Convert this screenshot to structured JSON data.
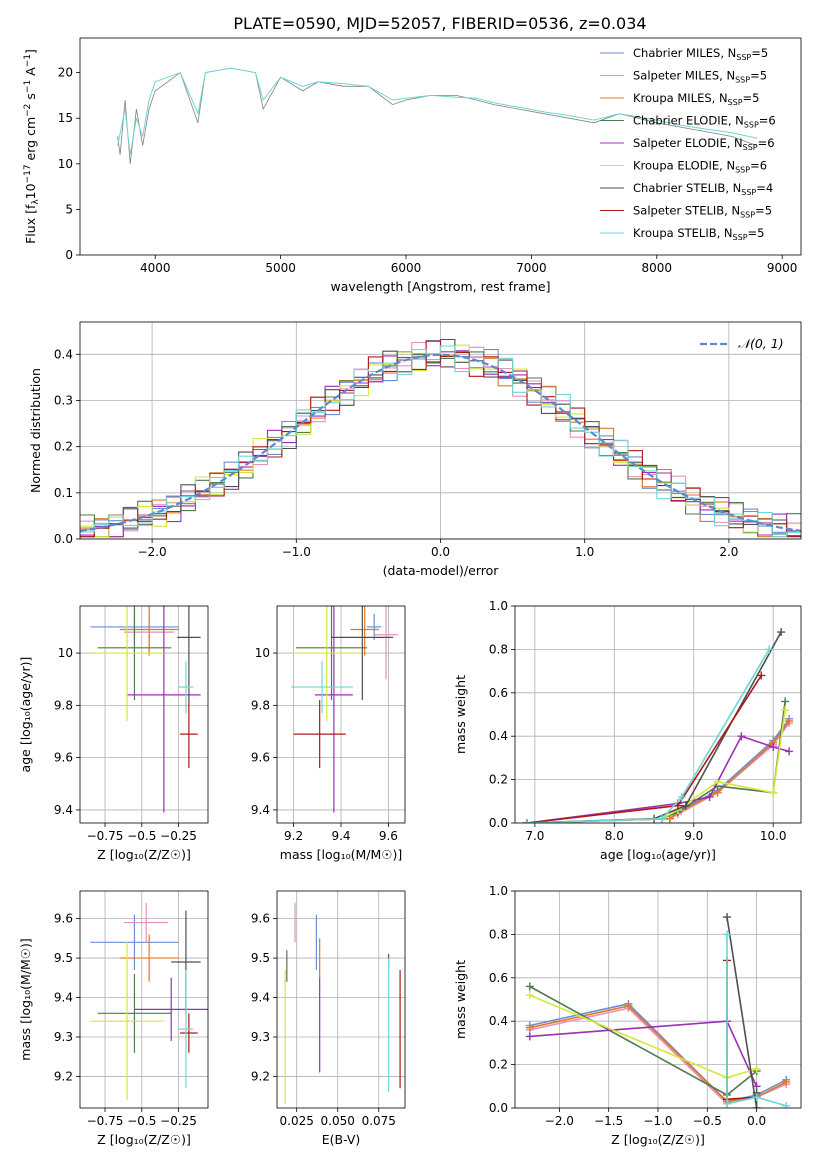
{
  "figure": {
    "title": "PLATE=0590, MJD=52057, FIBERID=0536, z=0.034",
    "colors": {
      "Chabrier MILES": "#6b8fd6",
      "Salpeter MILES": "#e88fc4",
      "Kroupa MILES": "#e07a22",
      "Chabrier ELODIE": "#4f7a4f",
      "Salpeter ELODIE": "#9b2fb5",
      "Kroupa ELODIE": "#d4e83a",
      "Chabrier STELIB": "#505050",
      "Salpeter STELIB": "#b01818",
      "Kroupa STELIB": "#6fd6d6",
      "normal": "#5a8ad6"
    }
  },
  "chart_data": [
    {
      "id": "spectrum",
      "type": "line",
      "xlabel": "wavelength [Angstrom, rest frame]",
      "ylabel": "Flux [f",
      "ylabel_parts": [
        "Flux [f",
        "λ",
        "10",
        "−17",
        " erg cm",
        "−2",
        " s",
        "−1",
        " A",
        "−1",
        "]"
      ],
      "xlim": [
        3400,
        9150
      ],
      "ylim": [
        0,
        23.8
      ],
      "xticks": [
        4000,
        5000,
        6000,
        7000,
        8000,
        9000
      ],
      "yticks": [
        0,
        5,
        10,
        15,
        20
      ],
      "legend_position": "upper-right",
      "legend": [
        {
          "base": "Chabrier MILES, N",
          "sub": "SSP",
          "tail": "=5",
          "color": "#6b8fd6"
        },
        {
          "base": "Salpeter MILES, N",
          "sub": "SSP",
          "tail": "=5",
          "color": "#e88fc4"
        },
        {
          "base": "Kroupa MILES, N",
          "sub": "SSP",
          "tail": "=5",
          "color": "#e07a22"
        },
        {
          "base": "Chabrier ELODIE, N",
          "sub": "SSP",
          "tail": "=6",
          "color": "#4f7a4f"
        },
        {
          "base": "Salpeter ELODIE, N",
          "sub": "SSP",
          "tail": "=6",
          "color": "#9b2fb5"
        },
        {
          "base": "Kroupa ELODIE, N",
          "sub": "SSP",
          "tail": "=6",
          "color": "#d4e83a"
        },
        {
          "base": "Chabrier STELIB, N",
          "sub": "SSP",
          "tail": "=4",
          "color": "#505050"
        },
        {
          "base": "Salpeter STELIB, N",
          "sub": "SSP",
          "tail": "=5",
          "color": "#b01818"
        },
        {
          "base": "Kroupa STELIB, N",
          "sub": "SSP",
          "tail": "=5",
          "color": "#6fd6d6"
        }
      ],
      "data_trace": {
        "color": "#808080",
        "points": [
          [
            3700,
            13
          ],
          [
            3720,
            11
          ],
          [
            3760,
            17
          ],
          [
            3800,
            10
          ],
          [
            3850,
            16
          ],
          [
            3900,
            12
          ],
          [
            3950,
            16
          ],
          [
            4000,
            18
          ],
          [
            4100,
            19
          ],
          [
            4200,
            20
          ],
          [
            4340,
            14.5
          ],
          [
            4400,
            20
          ],
          [
            4600,
            20.5
          ],
          [
            4800,
            20
          ],
          [
            4861,
            16
          ],
          [
            5000,
            19.5
          ],
          [
            5175,
            18
          ],
          [
            5300,
            19
          ],
          [
            5500,
            18.5
          ],
          [
            5700,
            18.5
          ],
          [
            5893,
            16.5
          ],
          [
            6000,
            17
          ],
          [
            6200,
            17.5
          ],
          [
            6400,
            17.5
          ],
          [
            6563,
            17
          ],
          [
            6700,
            16.5
          ],
          [
            6900,
            16
          ],
          [
            7100,
            15.5
          ],
          [
            7300,
            15
          ],
          [
            7500,
            14.5
          ],
          [
            7700,
            15.5
          ],
          [
            8000,
            14.5
          ],
          [
            8200,
            14
          ],
          [
            8400,
            13.5
          ],
          [
            8600,
            13
          ],
          [
            8800,
            12
          ]
        ]
      },
      "model_trace": {
        "color": "#6fd6d6",
        "points": [
          [
            3700,
            12
          ],
          [
            3760,
            16
          ],
          [
            3800,
            11
          ],
          [
            3850,
            15
          ],
          [
            3900,
            13
          ],
          [
            3950,
            17
          ],
          [
            4000,
            19
          ],
          [
            4100,
            19.5
          ],
          [
            4200,
            20
          ],
          [
            4340,
            15.5
          ],
          [
            4400,
            20
          ],
          [
            4600,
            20.5
          ],
          [
            4800,
            20
          ],
          [
            4861,
            17
          ],
          [
            5000,
            19.5
          ],
          [
            5175,
            18.5
          ],
          [
            5300,
            19
          ],
          [
            5500,
            18.8
          ],
          [
            5700,
            18.5
          ],
          [
            5893,
            17
          ],
          [
            6000,
            17.2
          ],
          [
            6200,
            17.5
          ],
          [
            6400,
            17.3
          ],
          [
            6563,
            17.2
          ],
          [
            6700,
            16.7
          ],
          [
            6900,
            16.2
          ],
          [
            7100,
            15.7
          ],
          [
            7300,
            15.3
          ],
          [
            7500,
            14.8
          ],
          [
            7700,
            15.5
          ],
          [
            8000,
            14.8
          ],
          [
            8200,
            14.2
          ],
          [
            8400,
            13.8
          ],
          [
            8600,
            13.4
          ],
          [
            8800,
            12.8
          ]
        ]
      }
    },
    {
      "id": "residuals",
      "type": "step",
      "xlabel": "(data-model)/error",
      "ylabel": "Normed distribution",
      "xlim": [
        -2.5,
        2.5
      ],
      "ylim": [
        0,
        0.47
      ],
      "xticks": [
        -2,
        -1,
        0,
        1,
        2
      ],
      "yticks": [
        0.0,
        0.1,
        0.2,
        0.3,
        0.4
      ],
      "grid": true,
      "legend_position": "upper-right",
      "legend": [
        {
          "label": "𝒩(0, 1)",
          "color": "#5a8ad6"
        }
      ],
      "normal": {
        "mean": 0,
        "sigma": 1
      }
    },
    {
      "id": "age-vs-z",
      "type": "scatter",
      "xlabel": "Z [log₁₀(Z/Z☉)]",
      "ylabel": "age  [log₁₀(age/yr)]",
      "xlim": [
        -0.92,
        -0.05
      ],
      "ylim": [
        9.35,
        10.18
      ],
      "xticks": [
        -0.75,
        -0.5,
        -0.25
      ],
      "yticks": [
        9.4,
        9.6,
        9.8,
        10.0
      ],
      "grid": true,
      "points": [
        {
          "x": -0.55,
          "y": 10.1,
          "xerr": 0.3,
          "yerr": 0.05,
          "color": "#6b8fd6"
        },
        {
          "x": -0.45,
          "y": 10.08,
          "xerr": 0.17,
          "yerr": 0.07,
          "color": "#e88fc4"
        },
        {
          "x": -0.45,
          "y": 10.09,
          "xerr": 0.2,
          "yerr": 0.1,
          "color": "#e07a22"
        },
        {
          "x": -0.55,
          "y": 10.02,
          "xerr": 0.25,
          "yerr": 0.2,
          "color": "#4f7a4f"
        },
        {
          "x": -0.35,
          "y": 9.84,
          "xerr": 0.25,
          "yerr": 0.45,
          "color": "#9b2fb5"
        },
        {
          "x": -0.6,
          "y": 10.0,
          "xerr": 0.25,
          "yerr": 0.26,
          "color": "#d4e83a"
        },
        {
          "x": -0.18,
          "y": 10.06,
          "xerr": 0.08,
          "yerr": 0.24,
          "color": "#505050"
        },
        {
          "x": -0.18,
          "y": 9.69,
          "xerr": 0.06,
          "yerr": 0.13,
          "color": "#b01818"
        },
        {
          "x": -0.2,
          "y": 9.87,
          "xerr": 0.05,
          "yerr": 0.1,
          "color": "#6fd6d6"
        }
      ]
    },
    {
      "id": "age-vs-mass",
      "type": "scatter",
      "xlabel": "mass [log₁₀(M/M☉)]",
      "ylabel": "",
      "xlim": [
        9.13,
        9.67
      ],
      "ylim": [
        9.35,
        10.18
      ],
      "xticks": [
        9.2,
        9.4,
        9.6
      ],
      "yticks": [
        9.4,
        9.6,
        9.8,
        10.0
      ],
      "grid": true,
      "points": [
        {
          "x": 9.54,
          "y": 10.1,
          "xerr": 0.03,
          "yerr": 0.05,
          "color": "#6b8fd6"
        },
        {
          "x": 9.59,
          "y": 10.07,
          "xerr": 0.05,
          "yerr": 0.17,
          "color": "#e88fc4"
        },
        {
          "x": 9.5,
          "y": 10.09,
          "xerr": 0.06,
          "yerr": 0.1,
          "color": "#e07a22"
        },
        {
          "x": 9.36,
          "y": 10.02,
          "xerr": 0.15,
          "yerr": 0.2,
          "color": "#4f7a4f"
        },
        {
          "x": 9.37,
          "y": 9.84,
          "xerr": 0.08,
          "yerr": 0.45,
          "color": "#9b2fb5"
        },
        {
          "x": 9.34,
          "y": 10.0,
          "xerr": 0.15,
          "yerr": 0.26,
          "color": "#d4e83a"
        },
        {
          "x": 9.49,
          "y": 10.06,
          "xerr": 0.13,
          "yerr": 0.24,
          "color": "#505050"
        },
        {
          "x": 9.31,
          "y": 9.69,
          "xerr": 0.11,
          "yerr": 0.13,
          "color": "#b01818"
        },
        {
          "x": 9.32,
          "y": 9.87,
          "xerr": 0.13,
          "yerr": 0.1,
          "color": "#6fd6d6"
        }
      ]
    },
    {
      "id": "weight-vs-age",
      "type": "line",
      "xlabel": "age  [log₁₀(age/yr)]",
      "ylabel": "mass weight",
      "xlim": [
        6.75,
        10.35
      ],
      "ylim": [
        0,
        1.0
      ],
      "xticks": [
        7,
        8,
        9,
        10
      ],
      "yticks": [
        0.0,
        0.2,
        0.4,
        0.6,
        0.8,
        1.0
      ],
      "grid": true,
      "series": [
        {
          "color": "#6b8fd6",
          "x": [
            6.9,
            8.7,
            8.8,
            9.3,
            10.0,
            10.2
          ],
          "y": [
            0.0,
            0.02,
            0.05,
            0.15,
            0.38,
            0.48
          ]
        },
        {
          "color": "#e88fc4",
          "x": [
            6.9,
            8.7,
            8.8,
            9.3,
            10.0,
            10.2
          ],
          "y": [
            0.0,
            0.02,
            0.04,
            0.14,
            0.36,
            0.46
          ]
        },
        {
          "color": "#e07a22",
          "x": [
            6.9,
            8.7,
            8.8,
            9.3,
            10.0,
            10.2
          ],
          "y": [
            0.0,
            0.02,
            0.05,
            0.14,
            0.37,
            0.47
          ]
        },
        {
          "color": "#4f7a4f",
          "x": [
            6.9,
            8.6,
            8.8,
            9.3,
            10.0,
            10.15
          ],
          "y": [
            0.0,
            0.02,
            0.05,
            0.17,
            0.14,
            0.56
          ]
        },
        {
          "color": "#9b2fb5",
          "x": [
            6.9,
            8.8,
            9.2,
            9.6,
            10.0,
            10.2
          ],
          "y": [
            0.0,
            0.09,
            0.12,
            0.4,
            0.35,
            0.33
          ]
        },
        {
          "color": "#d4e83a",
          "x": [
            6.9,
            8.6,
            8.8,
            9.3,
            10.0,
            10.15
          ],
          "y": [
            0.0,
            0.02,
            0.06,
            0.19,
            0.14,
            0.52
          ]
        },
        {
          "color": "#505050",
          "x": [
            6.9,
            8.5,
            8.9,
            10.1
          ],
          "y": [
            0.0,
            0.02,
            0.08,
            0.88
          ]
        },
        {
          "color": "#b01818",
          "x": [
            6.9,
            8.8,
            9.85
          ],
          "y": [
            0.0,
            0.08,
            0.68
          ]
        },
        {
          "color": "#6fd6d6",
          "x": [
            6.9,
            8.6,
            8.85,
            9.95
          ],
          "y": [
            0.0,
            0.02,
            0.12,
            0.8
          ]
        }
      ]
    },
    {
      "id": "mass-vs-z",
      "type": "scatter",
      "xlabel": "Z [log₁₀(Z/Z☉)]",
      "ylabel": "mass [log₁₀(M/M☉)]",
      "xlim": [
        -0.92,
        -0.05
      ],
      "ylim": [
        9.12,
        9.67
      ],
      "xticks": [
        -0.75,
        -0.5,
        -0.25
      ],
      "yticks": [
        9.2,
        9.3,
        9.4,
        9.5,
        9.6
      ],
      "grid": true,
      "points": [
        {
          "x": -0.55,
          "y": 9.54,
          "xerr": 0.3,
          "yerr": 0.07,
          "color": "#6b8fd6"
        },
        {
          "x": -0.47,
          "y": 9.59,
          "xerr": 0.15,
          "yerr": 0.05,
          "color": "#e88fc4"
        },
        {
          "x": -0.45,
          "y": 9.5,
          "xerr": 0.2,
          "yerr": 0.06,
          "color": "#e07a22"
        },
        {
          "x": -0.55,
          "y": 9.36,
          "xerr": 0.25,
          "yerr": 0.1,
          "color": "#4f7a4f"
        },
        {
          "x": -0.3,
          "y": 9.37,
          "xerr": 0.25,
          "yerr": 0.08,
          "color": "#9b2fb5"
        },
        {
          "x": -0.6,
          "y": 9.34,
          "xerr": 0.25,
          "yerr": 0.2,
          "color": "#d4e83a"
        },
        {
          "x": -0.2,
          "y": 9.49,
          "xerr": 0.1,
          "yerr": 0.13,
          "color": "#505050"
        },
        {
          "x": -0.18,
          "y": 9.31,
          "xerr": 0.06,
          "yerr": 0.05,
          "color": "#b01818"
        },
        {
          "x": -0.2,
          "y": 9.32,
          "xerr": 0.05,
          "yerr": 0.15,
          "color": "#6fd6d6"
        }
      ]
    },
    {
      "id": "mass-vs-ebv",
      "type": "scatter",
      "xlabel": "E(B-V)",
      "ylabel": "",
      "xlim": [
        0.013,
        0.091
      ],
      "ylim": [
        9.12,
        9.67
      ],
      "xticks": [
        0.025,
        0.05,
        0.075
      ],
      "tick_labels": [
        "0.025",
        "0.050",
        "0.075"
      ],
      "yticks": [
        9.2,
        9.3,
        9.4,
        9.5,
        9.6
      ],
      "grid": true,
      "points": [
        {
          "x": 0.037,
          "y": 9.54,
          "xerr": 0,
          "yerr": 0.07,
          "color": "#6b8fd6"
        },
        {
          "x": 0.024,
          "y": 9.59,
          "xerr": 0,
          "yerr": 0.05,
          "color": "#e88fc4"
        },
        {
          "x": 0.039,
          "y": 9.5,
          "xerr": 0,
          "yerr": 0.05,
          "color": "#e07a22"
        },
        {
          "x": 0.019,
          "y": 9.48,
          "xerr": 0,
          "yerr": 0.04,
          "color": "#4f7a4f"
        },
        {
          "x": 0.039,
          "y": 9.33,
          "xerr": 0,
          "yerr": 0.12,
          "color": "#9b2fb5"
        },
        {
          "x": 0.018,
          "y": 9.3,
          "xerr": 0,
          "yerr": 0.17,
          "color": "#d4e83a"
        },
        {
          "x": 0.081,
          "y": 9.49,
          "xerr": 0,
          "yerr": 0.02,
          "color": "#505050"
        },
        {
          "x": 0.088,
          "y": 9.32,
          "xerr": 0,
          "yerr": 0.15,
          "color": "#b01818"
        },
        {
          "x": 0.081,
          "y": 9.33,
          "xerr": 0,
          "yerr": 0.17,
          "color": "#6fd6d6"
        }
      ]
    },
    {
      "id": "weight-vs-z",
      "type": "line",
      "xlabel": "Z [log₁₀(Z/Z☉)]",
      "ylabel": "mass weight",
      "xlim": [
        -2.45,
        0.45
      ],
      "ylim": [
        0,
        1.0
      ],
      "xticks": [
        -2.0,
        -1.5,
        -1.0,
        -0.5,
        0.0
      ],
      "yticks": [
        0.0,
        0.2,
        0.4,
        0.6,
        0.8,
        1.0
      ],
      "grid": true,
      "series": [
        {
          "color": "#6b8fd6",
          "x": [
            -2.3,
            -1.3,
            -0.3,
            0.0,
            0.3
          ],
          "y": [
            0.38,
            0.48,
            0.03,
            0.06,
            0.13
          ]
        },
        {
          "color": "#e88fc4",
          "x": [
            -2.3,
            -1.3,
            -0.3,
            0.0,
            0.3
          ],
          "y": [
            0.36,
            0.46,
            0.02,
            0.05,
            0.11
          ]
        },
        {
          "color": "#e07a22",
          "x": [
            -2.3,
            -1.3,
            -0.3,
            0.0,
            0.3
          ],
          "y": [
            0.37,
            0.47,
            0.03,
            0.05,
            0.12
          ]
        },
        {
          "color": "#4f7a4f",
          "x": [
            -2.3,
            -0.3,
            0.0
          ],
          "y": [
            0.56,
            0.06,
            0.17
          ]
        },
        {
          "color": "#9b2fb5",
          "x": [
            -2.3,
            -0.3,
            0.0
          ],
          "y": [
            0.33,
            0.4,
            0.1
          ]
        },
        {
          "color": "#d4e83a",
          "x": [
            -2.3,
            -0.3,
            0.0
          ],
          "y": [
            0.52,
            0.14,
            0.18
          ]
        },
        {
          "color": "#505050",
          "x": [
            -0.3,
            0.0,
            0.0
          ],
          "y": [
            0.88,
            0.0,
            0.07
          ]
        },
        {
          "color": "#b01818",
          "x": [
            -0.3,
            -0.3,
            0.0
          ],
          "y": [
            0.68,
            0.04,
            0.05
          ]
        },
        {
          "color": "#6fd6d6",
          "x": [
            -0.3,
            -0.3,
            0.0,
            0.3
          ],
          "y": [
            0.8,
            0.02,
            0.05,
            0.01
          ]
        }
      ]
    }
  ]
}
